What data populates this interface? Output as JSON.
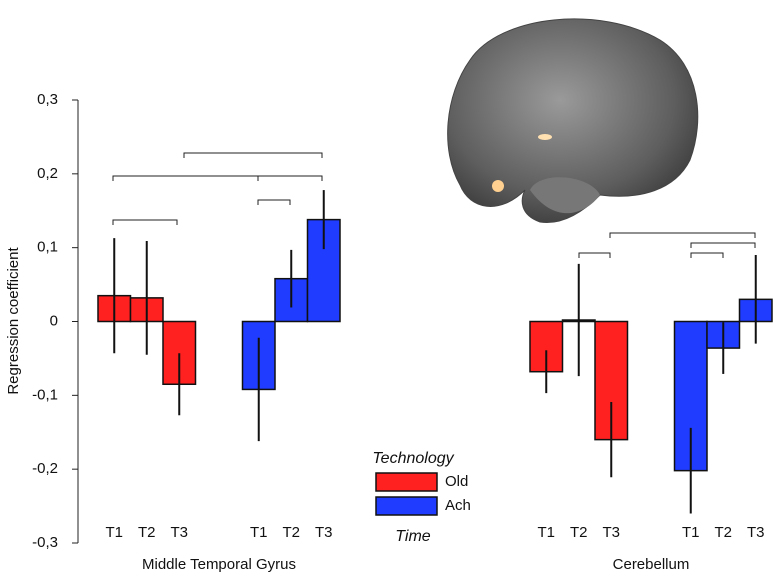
{
  "chart_data": {
    "type": "bar",
    "ylabel": "Regression coefficient",
    "groups": [
      "Middle Temporal Gyrus",
      "Cerebellum"
    ],
    "categories": [
      "T1",
      "T2",
      "T3",
      "T1",
      "T2",
      "T3"
    ],
    "series": [
      {
        "name": "Old",
        "color": "#ff2020",
        "values": [
          0.035,
          0.032,
          -0.085,
          -0.068,
          0.002,
          -0.16
        ],
        "errors": [
          0.078,
          0.077,
          0.042,
          0.029,
          0.076,
          0.051
        ]
      },
      {
        "name": "Ach",
        "color": "#1f3cff",
        "values": [
          -0.092,
          0.058,
          0.138,
          -0.202,
          -0.036,
          0.03
        ],
        "errors": [
          0.07,
          0.039,
          0.04,
          0.058,
          0.035,
          0.06
        ]
      }
    ],
    "legend_title": "Technology",
    "legend_footer": "Time",
    "ylim": [
      -0.3,
      0.3
    ],
    "yticks": [
      {
        "value": -0.3,
        "label": "-0,3"
      },
      {
        "value": -0.2,
        "label": "-0,2"
      },
      {
        "value": -0.1,
        "label": "-0,1"
      },
      0,
      {
        "value": 0.1,
        "label": "0,1"
      },
      {
        "value": 0.2,
        "label": "0,2"
      },
      {
        "value": 0.3,
        "label": "0,3"
      }
    ]
  }
}
